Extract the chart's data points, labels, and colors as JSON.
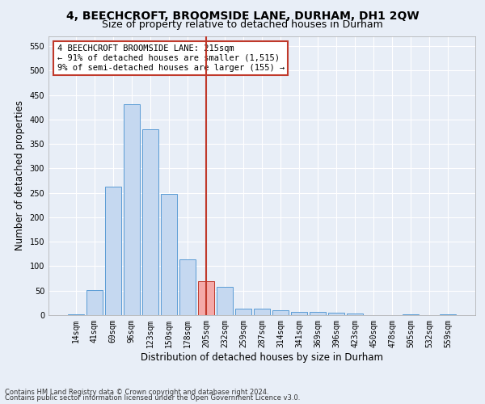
{
  "title1": "4, BEECHCROFT, BROOMSIDE LANE, DURHAM, DH1 2QW",
  "title2": "Size of property relative to detached houses in Durham",
  "xlabel": "Distribution of detached houses by size in Durham",
  "ylabel": "Number of detached properties",
  "footnote1": "Contains HM Land Registry data © Crown copyright and database right 2024.",
  "footnote2": "Contains public sector information licensed under the Open Government Licence v3.0.",
  "categories": [
    "14sqm",
    "41sqm",
    "69sqm",
    "96sqm",
    "123sqm",
    "150sqm",
    "178sqm",
    "205sqm",
    "232sqm",
    "259sqm",
    "287sqm",
    "314sqm",
    "341sqm",
    "369sqm",
    "396sqm",
    "423sqm",
    "450sqm",
    "478sqm",
    "505sqm",
    "532sqm",
    "559sqm"
  ],
  "values": [
    2,
    51,
    263,
    432,
    380,
    248,
    114,
    70,
    58,
    14,
    14,
    10,
    7,
    7,
    5,
    3,
    0,
    0,
    1,
    0,
    1
  ],
  "bar_color": "#c5d8f0",
  "bar_edge_color": "#5a9bd5",
  "highlight_bar_color": "#f4a9a8",
  "highlight_bar_edge_color": "#c0392b",
  "highlight_index": 7,
  "vline_color": "#c0392b",
  "annotation_text": "4 BEECHCROFT BROOMSIDE LANE: 215sqm\n← 91% of detached houses are smaller (1,515)\n9% of semi-detached houses are larger (155) →",
  "annotation_box_color": "#ffffff",
  "annotation_edge_color": "#c0392b",
  "ylim": [
    0,
    570
  ],
  "yticks": [
    0,
    50,
    100,
    150,
    200,
    250,
    300,
    350,
    400,
    450,
    500,
    550
  ],
  "background_color": "#e8eef7",
  "grid_color": "#ffffff",
  "title1_fontsize": 10,
  "title2_fontsize": 9,
  "axis_label_fontsize": 8.5,
  "tick_fontsize": 7,
  "footnote_fontsize": 6,
  "annotation_fontsize": 7.5
}
